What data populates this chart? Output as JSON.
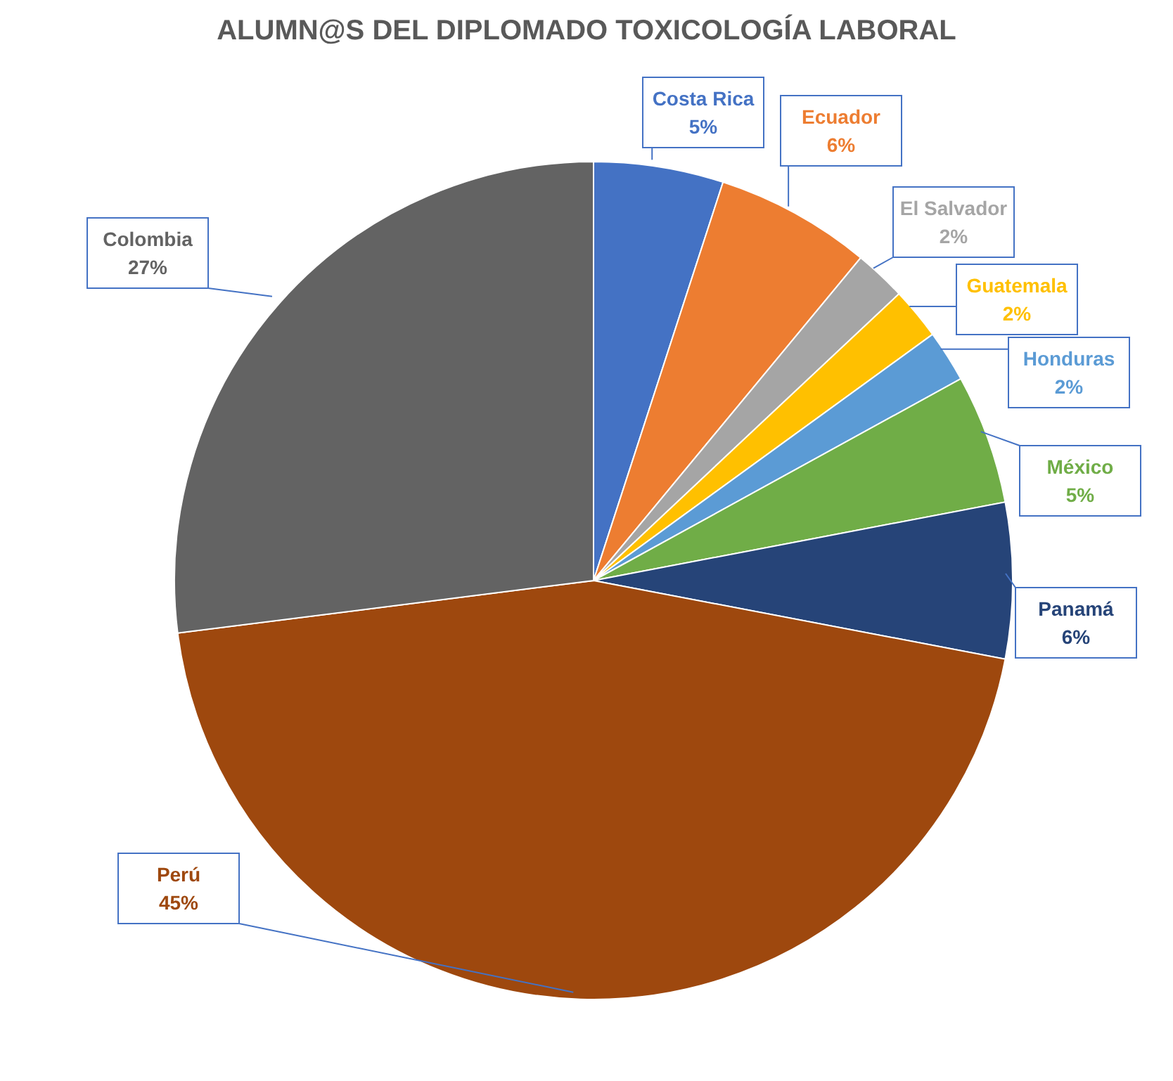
{
  "chart_data": {
    "type": "pie",
    "title": "ALUMN@S DEL DIPLOMADO TOXICOLOGÍA LABORAL",
    "categories": [
      "Costa Rica",
      "Ecuador",
      "El Salvador",
      "Guatemala",
      "Honduras",
      "México",
      "Panamá",
      "Perú",
      "Colombia"
    ],
    "values": [
      5,
      6,
      2,
      2,
      2,
      5,
      6,
      45,
      27
    ],
    "value_labels": [
      "5%",
      "6%",
      "2%",
      "2%",
      "2%",
      "5%",
      "6%",
      "45%",
      "27%"
    ],
    "colors": [
      "#4472c4",
      "#ed7d31",
      "#a5a5a5",
      "#ffc000",
      "#5b9bd5",
      "#70ad47",
      "#264478",
      "#9e480e",
      "#636363"
    ]
  }
}
